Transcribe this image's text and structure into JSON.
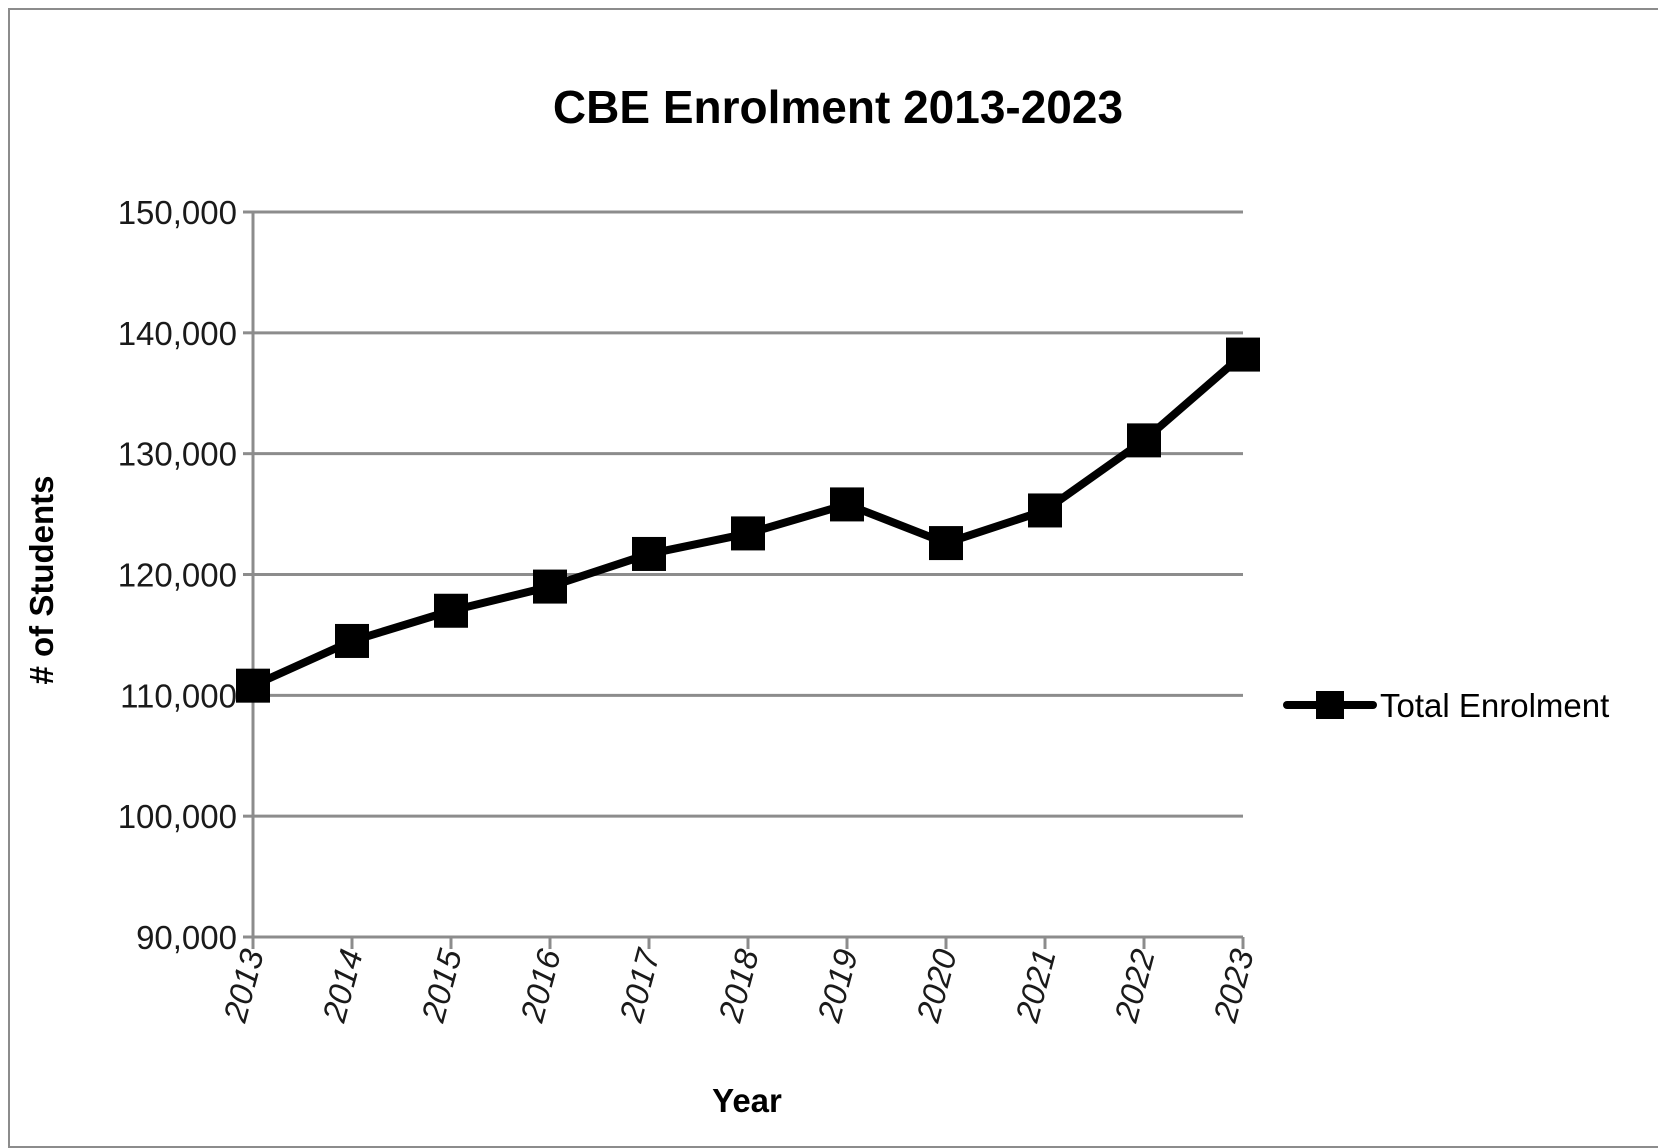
{
  "chart_data": {
    "type": "line",
    "title": "CBE  Enrolment 2013-2023",
    "xlabel": "Year",
    "ylabel": "# of Students",
    "categories": [
      "2013",
      "2014",
      "2015",
      "2016",
      "2017",
      "2018",
      "2019",
      "2020",
      "2021",
      "2022",
      "2023"
    ],
    "series": [
      {
        "name": "Total Enrolment",
        "values": [
          110800,
          114500,
          117000,
          119000,
          121700,
          123400,
          125800,
          122600,
          125300,
          131100,
          138200
        ],
        "color": "#000000",
        "marker": "square"
      }
    ],
    "ylim": [
      90000,
      150000
    ],
    "yticks": [
      90000,
      100000,
      110000,
      120000,
      130000,
      140000,
      150000
    ],
    "ytick_labels": [
      "90,000",
      "100,000",
      "110,000",
      "120,000",
      "130,000",
      "140,000",
      "150,000"
    ],
    "grid": true,
    "legend_position": "right",
    "colors": {
      "grid": "#8c8c8c",
      "axis": "#8c8c8c",
      "line": "#000000"
    }
  }
}
